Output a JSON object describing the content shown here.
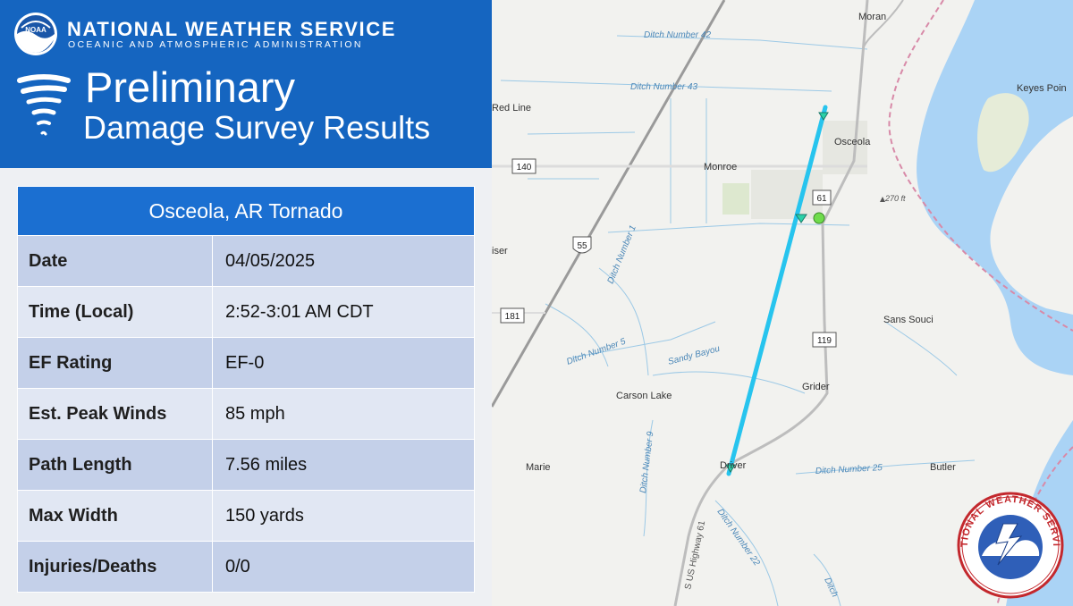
{
  "header": {
    "agency": "NATIONAL WEATHER SERVICE",
    "sub_agency": "OCEANIC AND ATMOSPHERIC ADMINISTRATION",
    "logo_text": "NOAA",
    "title_line1": "Preliminary",
    "title_line2": "Damage Survey Results"
  },
  "table": {
    "heading": "Osceola, AR Tornado",
    "rows": [
      {
        "label": "Date",
        "value": "04/05/2025"
      },
      {
        "label": "Time (Local)",
        "value": "2:52-3:01 AM CDT"
      },
      {
        "label": "EF Rating",
        "value": "EF-0"
      },
      {
        "label": "Est. Peak Winds",
        "value": "85 mph"
      },
      {
        "label": "Path Length",
        "value": "7.56 miles"
      },
      {
        "label": "Max Width",
        "value": "150 yards"
      },
      {
        "label": "Injuries/Deaths",
        "value": "0/0"
      }
    ]
  },
  "map": {
    "places": {
      "moran": "Moran",
      "keyes_point": "Keyes Poin",
      "red_line": "Red Line",
      "osceola": "Osceola",
      "monroe": "Monroe",
      "elevation": "270 ft",
      "kaiser": "iser",
      "sans_souci": "Sans Souci",
      "grider": "Grider",
      "carson_lake": "Carson Lake",
      "marie": "Marie",
      "driver": "Driver",
      "butler": "Butler"
    },
    "waterways": {
      "ditch42": "Ditch Number 42",
      "ditch43": "Ditch Number 43",
      "ditch1": "Ditch Number 1",
      "ditch5": "Ditch Number 5",
      "sandy_bayou": "Sandy Bayou",
      "ditch9": "Ditch Number 9",
      "ditch25": "Ditch Number 25",
      "ditch22": "Ditch Number 22",
      "ditch_cut": "Ditch"
    },
    "roads": {
      "hwy140": "140",
      "hwy61": "61",
      "i55": "55",
      "hwy181": "181",
      "hwy119": "119",
      "us61": "S US Highway 61"
    }
  },
  "badge": {
    "text": "NATIONAL WEATHER SERVICE"
  },
  "colors": {
    "header_blue": "#1565c0",
    "table_header": "#1b6fd1",
    "row_odd": "#c4d0e9",
    "row_even": "#e1e7f3",
    "track": "#27c4ee",
    "water": "#aad3f5",
    "marker_green": "#6fdc4c"
  }
}
